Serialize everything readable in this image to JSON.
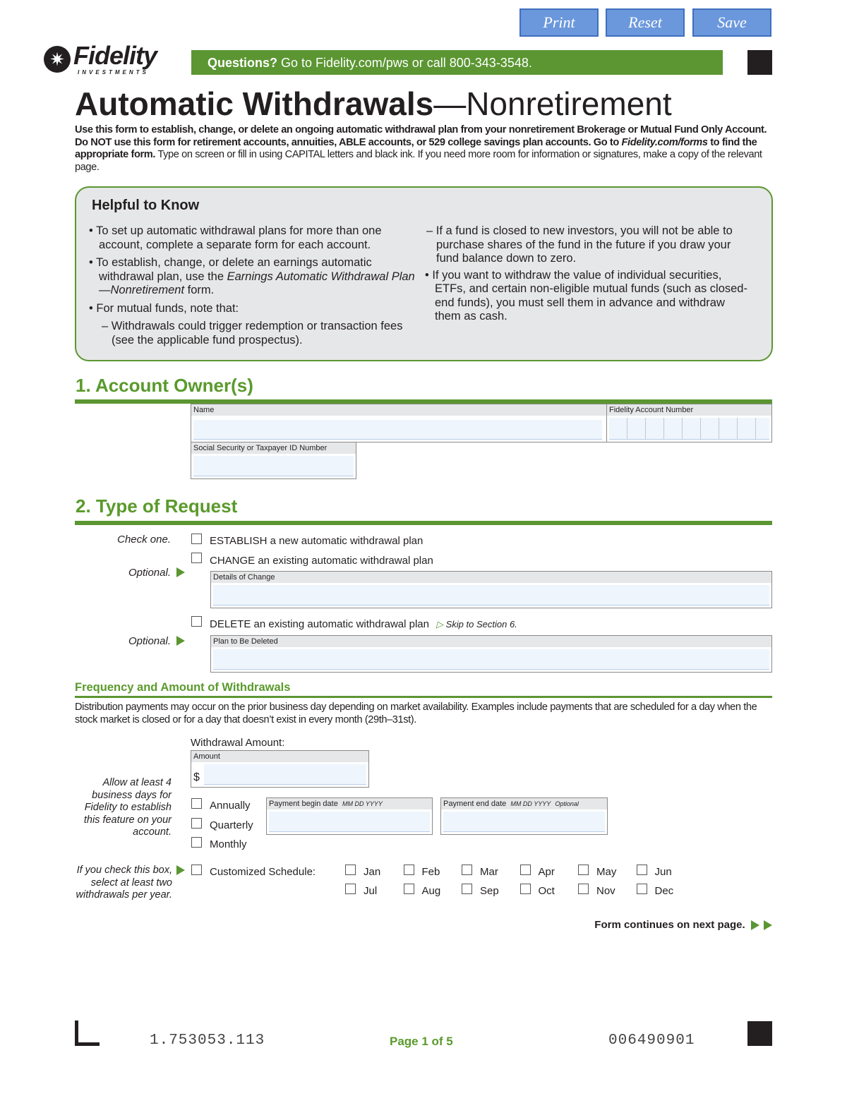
{
  "toolbar": {
    "print": "Print",
    "reset": "Reset",
    "save": "Save"
  },
  "logo": {
    "name": "Fidelity",
    "sub": "INVESTMENTS"
  },
  "banner": {
    "bold": "Questions?",
    "text": " Go to Fidelity.com/pws or call 800-343-3548."
  },
  "title": {
    "main": "Automatic Withdrawals",
    "dash": "—",
    "sub": "Nonretirement"
  },
  "intro": {
    "bold1": "Use this form to establish, change, or delete an ongoing automatic withdrawal plan from your nonretirement Brokerage or Mutual Fund Only Account. Do NOT use this form for retirement accounts, annuities, ABLE accounts, or 529 college savings plan accounts. Go to ",
    "link": "Fidelity.com/forms",
    "bold2": " to find the appropriate form.",
    "normal": " Type on screen or fill in using CAPITAL letters and black ink. If you need more room for information or signatures, make a copy of the relevant page."
  },
  "helpful": {
    "title": "Helpful to Know",
    "b1": "• To set up automatic withdrawal plans for more than one account, complete a separate form for each account.",
    "b2a": "• To establish, change, or delete an earnings automatic withdrawal plan, use the ",
    "b2i": "Earnings Automatic Withdrawal Plan—Nonretirement",
    "b2b": " form.",
    "b3": "• For mutual funds, note that:",
    "b3a": "– Withdrawals could trigger redemption or transaction fees (see the applicable fund prospectus).",
    "b3b": "– If a fund is closed to new investors, you will not be able to purchase shares of the fund in the future if you draw your fund balance down to zero.",
    "b4": "• If you want to withdraw the value of individual securities, ETFs, and certain non-eligible mutual funds (such as closed-end funds), you must sell them in advance and withdraw them as cash."
  },
  "s1": {
    "title": "1. Account Owner(s)",
    "name": "Name",
    "acct": "Fidelity Account Number",
    "ssn": "Social Security or Taxpayer ID Number"
  },
  "s2": {
    "title": "2. Type of Request",
    "check_one": "Check one.",
    "establish": "ESTABLISH a new automatic withdrawal plan",
    "change": "CHANGE an existing automatic withdrawal plan",
    "optional": "Optional.",
    "details": "Details of Change",
    "delete": "DELETE an existing automatic withdrawal plan",
    "skip": "Skip to Section 6.",
    "plan_deleted": "Plan to Be Deleted"
  },
  "freq": {
    "title": "Frequency and Amount of Withdrawals",
    "desc": "Distribution payments may occur on the prior business day depending on market availability. Examples include payments that are scheduled for a day when the stock market is closed or for a day that doesn’t exist in every month (29th–31st).",
    "withdrawal_amount": "Withdrawal Amount:",
    "amount": "Amount",
    "dollar": "$",
    "allow": "Allow at least 4 business days for Fidelity to establish this feature on your account.",
    "annually": "Annually",
    "quarterly": "Quarterly",
    "monthly": "Monthly",
    "begin": "Payment begin date",
    "begin_fmt": "MM DD YYYY",
    "end": "Payment end date",
    "end_fmt": "MM DD YYYY",
    "end_opt": "Optional",
    "if_check": "If you check this box, select at least two withdrawals per year.",
    "custom": "Customized Schedule:",
    "months": [
      "Jan",
      "Feb",
      "Mar",
      "Apr",
      "May",
      "Jun",
      "Jul",
      "Aug",
      "Sep",
      "Oct",
      "Nov",
      "Dec"
    ]
  },
  "continues": "Form continues on next page.",
  "footer": {
    "code": "1.753053.113",
    "page": "Page 1 of 5",
    "num": "006490901"
  },
  "colors": {
    "green": "#5b9632",
    "button": "#6b98dc"
  }
}
